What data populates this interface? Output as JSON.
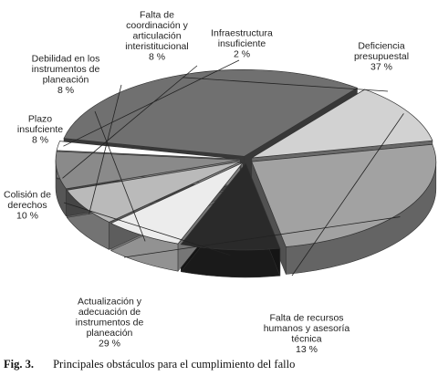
{
  "chart_data": {
    "type": "pie",
    "style": "3d-exploded",
    "legend": "none",
    "slices": [
      {
        "label": [
          "Deficiencia",
          "presupuestal"
        ],
        "value": 37,
        "display": "37 %",
        "color": "#707070"
      },
      {
        "label": [
          "Falta de recursos",
          "humanos y asesoría",
          "técnica"
        ],
        "value": 13,
        "display": "13 %",
        "color": "#d2d2d2"
      },
      {
        "label": [
          "Actualización y",
          "adecuación de",
          "instrumentos de",
          "planeación"
        ],
        "value": 29,
        "display": "29 %",
        "color": "#a2a2a2"
      },
      {
        "label": [
          "Colisión de",
          "derechos"
        ],
        "value": 10,
        "display": "10 %",
        "color": "#2a2a2a"
      },
      {
        "label": [
          "Plazo",
          "insufciente"
        ],
        "value": 8,
        "display": "8 %",
        "color": "#ececec"
      },
      {
        "label": [
          "Debilidad en los",
          "instrumentos de",
          "planeación"
        ],
        "value": 8,
        "display": "8 %",
        "color": "#bababa"
      },
      {
        "label": [
          "Falta de",
          "coordinación y",
          "articulación",
          "interistitucional"
        ],
        "value": 8,
        "display": "8 %",
        "color": "#8a8a8a"
      },
      {
        "label": [
          "Infraestructura",
          "insuficiente"
        ],
        "value": 2,
        "display": "2 %",
        "color": "#ffffff"
      }
    ]
  },
  "caption": {
    "number": "Fig. 3.",
    "text": "Principales obstáculos para el cumplimiento del fallo"
  }
}
